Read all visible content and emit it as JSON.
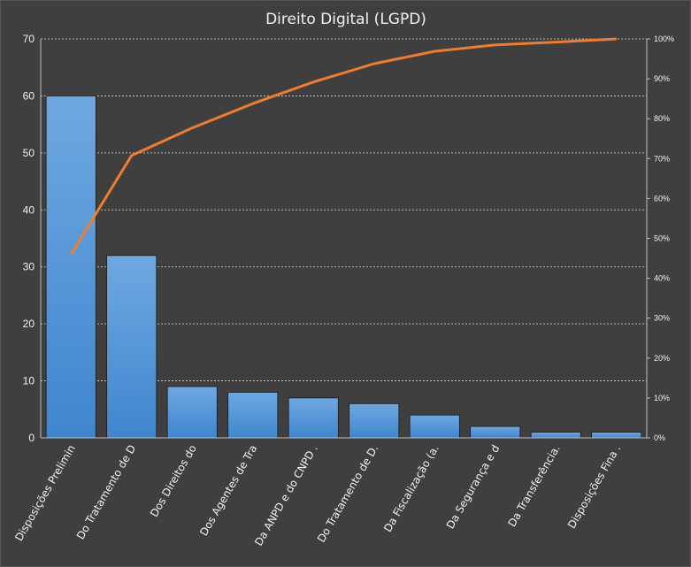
{
  "chart_data": {
    "type": "bar",
    "title": "Direito Digital (LGPD)",
    "categories": [
      "Disposições Prelimin",
      "Do Tratamento de D",
      "Dos Direitos do",
      "Dos Agentes de Tra",
      "Da ANPD e do CNPD .",
      "Do Tratamento de D.",
      "Da Fiscalização (a.",
      "Da Segurança e d",
      "Da Transferência.",
      "Disposições Fina ."
    ],
    "series": [
      {
        "type": "bar",
        "values": [
          60,
          32,
          9,
          8,
          7,
          6,
          4,
          2,
          1,
          1
        ],
        "color": "#5b9bd5"
      },
      {
        "type": "line",
        "axis": "secondary",
        "values": [
          46,
          70.8,
          77.7,
          83.8,
          89.2,
          93.8,
          96.9,
          98.5,
          99.2,
          100
        ],
        "color": "#ed7d31"
      }
    ],
    "ylim": [
      0,
      70
    ],
    "yticks": [
      "0",
      "10",
      "20",
      "30",
      "40",
      "50",
      "60",
      "70"
    ],
    "y2lim": [
      0,
      100
    ],
    "y2ticks": [
      "0%",
      "10%",
      "20%",
      "30%",
      "40%",
      "50%",
      "60%",
      "70%",
      "80%",
      "90%",
      "100%"
    ],
    "grid": true,
    "xlabel": "",
    "ylabel": ""
  }
}
